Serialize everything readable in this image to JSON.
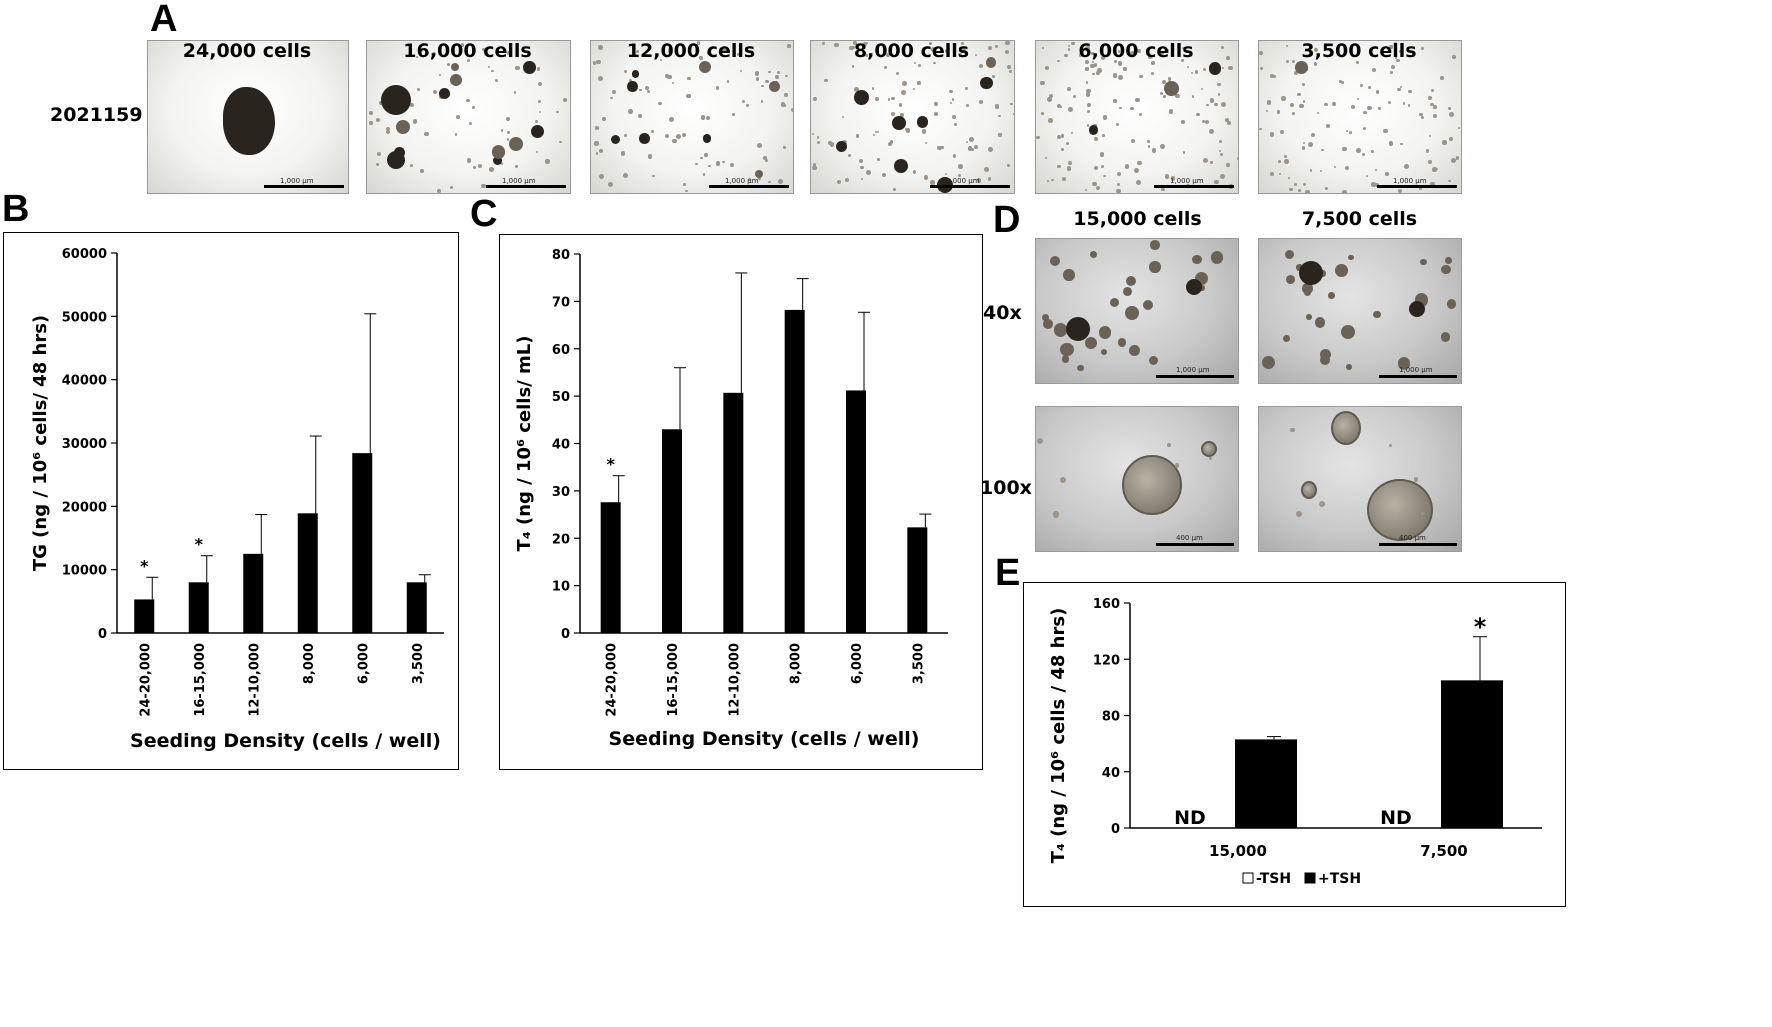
{
  "panels": {
    "A": {
      "letter": "A",
      "line_label": "2021159",
      "images": [
        {
          "label": "24,000 cells",
          "scale": "1,000 µm"
        },
        {
          "label": "16,000 cells",
          "scale": "1,000 µm"
        },
        {
          "label": "12,000 cells",
          "scale": "1,000 µm"
        },
        {
          "label": "8,000 cells",
          "scale": "1,000 µm"
        },
        {
          "label": "6,000 cells",
          "scale": "1,000 µm"
        },
        {
          "label": "3,500 cells",
          "scale": "1,000 µm"
        }
      ]
    },
    "B": {
      "letter": "B"
    },
    "C": {
      "letter": "C"
    },
    "D": {
      "letter": "D",
      "col_labels": [
        "15,000 cells",
        "7,500 cells"
      ],
      "row_labels": [
        "40x",
        "100x"
      ],
      "scales": [
        "1,000 µm",
        "400 µm"
      ]
    },
    "E": {
      "letter": "E"
    }
  },
  "chart_data": [
    {
      "id": "B",
      "type": "bar",
      "categories": [
        "24-20,000",
        "16-15,000",
        "12-10,000",
        "8,000",
        "6,000",
        "3,500"
      ],
      "values": [
        5300,
        8000,
        12500,
        18900,
        28400,
        8000
      ],
      "errors": [
        3500,
        4200,
        6200,
        12200,
        22000,
        1200
      ],
      "significance": [
        "*",
        "*",
        "",
        "",
        "",
        ""
      ],
      "ylabel": "TG (ng / 10⁶ cells/ 48 hrs)",
      "xlabel": "Seeding Density (cells / well)",
      "ylim": [
        0,
        60000
      ],
      "yticks": [
        0,
        10000,
        20000,
        30000,
        40000,
        50000,
        60000
      ],
      "bar_color": "#000000",
      "grid": false
    },
    {
      "id": "C",
      "type": "bar",
      "categories": [
        "24-20,000",
        "16-15,000",
        "12-10,000",
        "8,000",
        "6,000",
        "3,500"
      ],
      "values": [
        27.6,
        43,
        50.7,
        68.2,
        51.2,
        22.3
      ],
      "errors": [
        5.6,
        13,
        25.3,
        6.6,
        16.5,
        2.8
      ],
      "significance": [
        "*",
        "",
        "",
        "",
        "",
        ""
      ],
      "ylabel": "T₄ (ng / 10⁶ cells/ mL)",
      "xlabel": "Seeding Density (cells / well)",
      "ylim": [
        0,
        80
      ],
      "yticks": [
        0,
        10,
        20,
        30,
        40,
        50,
        60,
        70,
        80
      ],
      "bar_color": "#000000",
      "grid": false
    },
    {
      "id": "E",
      "type": "bar",
      "categories": [
        "15,000",
        "7,500"
      ],
      "series": [
        {
          "name": "-TSH",
          "values": [
            null,
            null
          ],
          "display": [
            "ND",
            "ND"
          ],
          "color": "#ffffff"
        },
        {
          "name": "+TSH",
          "values": [
            63,
            105
          ],
          "errors": [
            2,
            31
          ],
          "significance": [
            "",
            "*"
          ],
          "color": "#000000"
        }
      ],
      "ylabel": "T₄ (ng / 10⁶ cells / 48 hrs)",
      "xlabel": "",
      "ylim": [
        0,
        160
      ],
      "yticks": [
        0,
        40,
        80,
        120,
        160
      ],
      "legend": "bottom-center",
      "grid": false
    }
  ]
}
